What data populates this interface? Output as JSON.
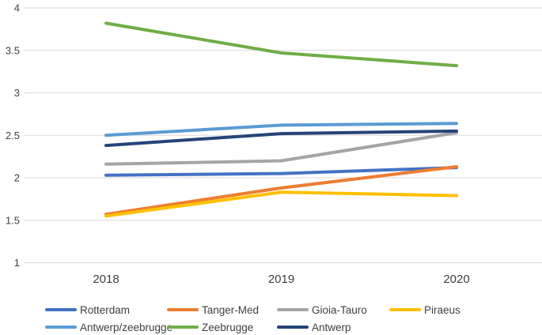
{
  "chart_data": {
    "type": "line",
    "title": "",
    "xlabel": "",
    "ylabel": "",
    "x_categories": [
      "2018",
      "2019",
      "2020"
    ],
    "ylim": [
      1,
      4
    ],
    "yticks": [
      4,
      3.5,
      3,
      2.5,
      2,
      1.5,
      1
    ],
    "ytick_labels": [
      "4",
      "3.5",
      "3",
      "2.5",
      "2",
      "1.5",
      "1"
    ],
    "grid": "horizontal",
    "gridline_color": "#d9d9d9",
    "tick_text_color": "#404040",
    "legend_position": "bottom",
    "series": [
      {
        "name": "Rotterdam",
        "color": "#4472C4",
        "values": [
          2.03,
          2.05,
          2.12
        ]
      },
      {
        "name": "Tanger-Med",
        "color": "#ED7D31",
        "values": [
          1.57,
          1.88,
          2.13
        ]
      },
      {
        "name": "Gioia-Tauro",
        "color": "#A5A5A5",
        "values": [
          2.16,
          2.2,
          2.53
        ]
      },
      {
        "name": "Piraeus",
        "color": "#FFC000",
        "values": [
          1.55,
          1.83,
          1.79
        ]
      },
      {
        "name": "Antwerp/zeebrugge",
        "color": "#5B9BD5",
        "values": [
          2.5,
          2.62,
          2.64
        ]
      },
      {
        "name": "Zeebrugge",
        "color": "#70AD47",
        "values": [
          3.82,
          3.47,
          3.32
        ]
      },
      {
        "name": "Antwerp",
        "color": "#264478",
        "values": [
          2.38,
          2.52,
          2.55
        ]
      }
    ]
  }
}
